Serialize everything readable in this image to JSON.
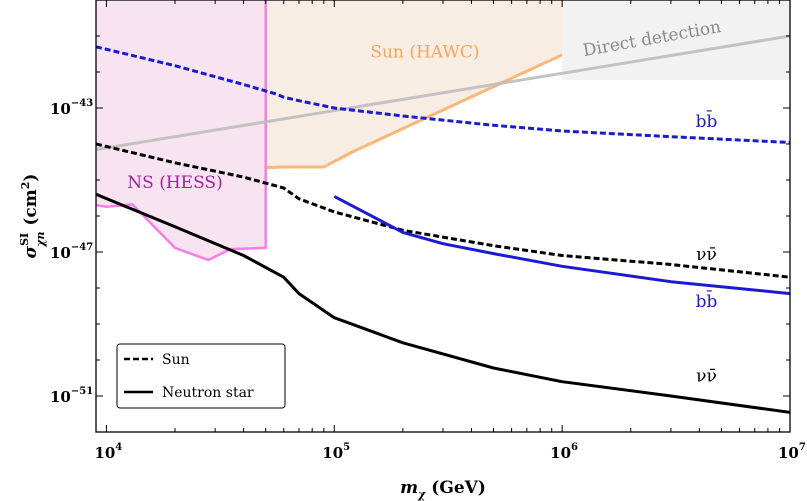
{
  "chart_data": {
    "type": "line",
    "xscale": "log",
    "yscale": "log",
    "xlim": [
      9000,
      10000000
    ],
    "ylim": [
      1e-52,
      1e-40
    ],
    "xlabel": "mχ (GeV)",
    "ylabel": "σχn SI (cm²)",
    "x_ticks": [
      {
        "base": "10",
        "exp": "4"
      },
      {
        "base": "10",
        "exp": "5"
      },
      {
        "base": "10",
        "exp": "6"
      },
      {
        "base": "10",
        "exp": "7"
      }
    ],
    "y_ticks": [
      {
        "base": "10",
        "exp": "−43",
        "value": 1e-43
      },
      {
        "base": "10",
        "exp": "−47",
        "value": 1e-47
      },
      {
        "base": "10",
        "exp": "−51",
        "value": 1e-51
      }
    ],
    "regions": [
      {
        "name": "NS (HESS)",
        "color": "#f7e4f0",
        "edge": "#f57ee3",
        "boundary": [
          [
            9000,
            2e-46
          ],
          [
            10000,
            1.8e-46
          ],
          [
            13000,
            2.1e-46
          ],
          [
            20000,
            1.3e-47
          ],
          [
            28000,
            6e-48
          ],
          [
            35000,
            1.2e-47
          ],
          [
            50000,
            1.3e-47
          ]
        ],
        "x_max": 50000
      },
      {
        "name": "Sun (HAWC)",
        "color": "#f7ede3",
        "edge": "#f9b77a",
        "boundary": [
          [
            9000,
            2.5e-45
          ],
          [
            20000,
            2.5e-45
          ],
          [
            30000,
            2.2e-45
          ],
          [
            50000,
            2.2e-45
          ],
          [
            60000,
            2.3e-45
          ],
          [
            90000,
            2.3e-45
          ],
          [
            120000,
            6e-45
          ],
          [
            1000000,
            3e-42
          ]
        ],
        "x_max": 1000000
      },
      {
        "name": "",
        "color": "#f2f2f2",
        "x_min": 1000000,
        "x_max": 10000000
      }
    ],
    "series": [
      {
        "name": "Sun",
        "channel": "bb̄",
        "style": "dashed",
        "color": "#1a1ad4",
        "width": 3,
        "x": [
          9000,
          20000,
          40000,
          55000,
          60000,
          70000,
          100000,
          200000,
          500000,
          1000000,
          3000000,
          10000000
        ],
        "y": [
          5e-42,
          1.5e-42,
          4.5e-43,
          2.5e-43,
          2e-43,
          1.6e-43,
          1e-43,
          6e-44,
          3.3e-44,
          2.3e-44,
          1.6e-44,
          1.1e-44
        ]
      },
      {
        "name": "Neutron star",
        "channel": "bb̄",
        "style": "solid",
        "color": "#1a1ad4",
        "width": 3,
        "x": [
          100000,
          200000,
          300000,
          500000,
          1000000,
          3000000,
          10000000
        ],
        "y": [
          3.5e-46,
          3.5e-47,
          1.7e-47,
          9e-48,
          4e-48,
          1.5e-48,
          7e-49
        ]
      },
      {
        "name": "Sun",
        "channel": "νν̄",
        "style": "dashed",
        "color": "#000000",
        "width": 3,
        "x": [
          9000,
          20000,
          40000,
          60000,
          70000,
          100000,
          200000,
          500000,
          1000000,
          3000000,
          10000000
        ],
        "y": [
          1e-44,
          3e-45,
          1.2e-45,
          6e-46,
          3e-46,
          1.3e-46,
          4e-47,
          1.5e-47,
          8e-48,
          4.5e-48,
          2e-48
        ]
      },
      {
        "name": "Neutron star",
        "channel": "νν̄",
        "style": "solid",
        "color": "#000000",
        "width": 3,
        "x": [
          9000,
          20000,
          40000,
          60000,
          70000,
          100000,
          200000,
          500000,
          1000000,
          3000000,
          10000000
        ],
        "y": [
          4e-46,
          5e-47,
          8e-48,
          2e-48,
          7e-49,
          1.5e-49,
          3e-50,
          6e-51,
          2.5e-51,
          1e-51,
          3.5e-52
        ]
      },
      {
        "name": "Direct detection",
        "style": "solid",
        "color": "#bdbdbd",
        "width": 3,
        "x": [
          9000,
          10000000
        ],
        "y": [
          7e-45,
          1e-41
        ]
      }
    ],
    "annotations": [
      {
        "text": "Sun (HAWC)",
        "x": 250000,
        "y": 2.5e-42,
        "color": "#f7a55a"
      },
      {
        "text": "Direct detection",
        "x": 2500000,
        "y": 6e-42,
        "color": "#8a8a8a",
        "rotate": true
      },
      {
        "text": "NS (HESS)",
        "x": 20000,
        "y": 6e-46,
        "color": "#a01fa0"
      },
      {
        "text": "bb̄",
        "x": 4300000,
        "y": 3e-44,
        "color": "#1a1ad4"
      },
      {
        "text": "νν̄",
        "x": 4300000,
        "y": 6e-48,
        "color": "#000000"
      },
      {
        "text": "bb̄",
        "x": 4300000,
        "y": 3e-49,
        "color": "#1a1ad4"
      },
      {
        "text": "νν̄",
        "x": 4300000,
        "y": 2.5e-51,
        "color": "#000000"
      }
    ],
    "legend": {
      "location": "bottom-left",
      "entries": [
        {
          "label": "Sun",
          "style": "dashed"
        },
        {
          "label": "Neutron star",
          "style": "solid"
        }
      ]
    },
    "grid": false
  }
}
